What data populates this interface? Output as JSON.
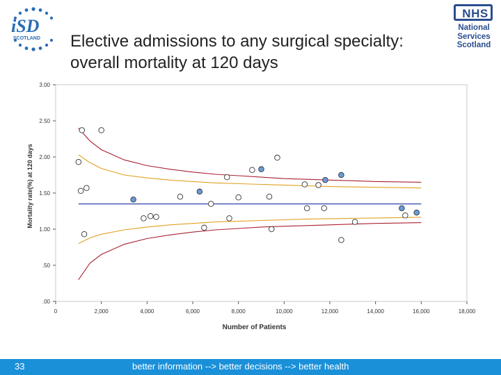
{
  "header": {
    "title": "Elective admissions to any surgical specialty: overall mortality at 120 days",
    "isd_logo_text": {
      "main": "iSD",
      "sub": "SCOTLAND"
    },
    "nhs_logo": {
      "word": "NHS",
      "lines": [
        "National",
        "Services",
        "Scotland"
      ]
    }
  },
  "chart_data": {
    "type": "scatter",
    "title": "",
    "xlabel": "Number of Patients",
    "ylabel": "Mortality rate(%) at 120 days",
    "xlim": [
      0,
      18000
    ],
    "ylim": [
      0,
      3.0
    ],
    "x_ticks": [
      0,
      2000,
      4000,
      6000,
      8000,
      10000,
      12000,
      14000,
      16000,
      18000
    ],
    "x_tick_labels": [
      "0",
      "2,000",
      "4,000",
      "6,000",
      "8,000",
      "10,000",
      "12,000",
      "14,000",
      "16,000",
      "18,000"
    ],
    "y_ticks": [
      0,
      0.5,
      1.0,
      1.5,
      2.0,
      2.5,
      3.0
    ],
    "y_tick_labels": [
      ".00",
      ".50",
      "1.00",
      "1.50",
      "2.00",
      "2.50",
      "3.00"
    ],
    "grid": false,
    "mean_line": 1.35,
    "colors": {
      "mean": "#3344aa",
      "inner_limit": "#e0a020",
      "outer_limit": "#aa2030",
      "point_filled": "#6b9bd8",
      "point_open": "#ffffff",
      "point_edge": "#333333"
    },
    "inner_limits": {
      "x": [
        1000,
        1500,
        2000,
        3000,
        4000,
        5000,
        6000,
        7000,
        8000,
        9000,
        10000,
        11000,
        12000,
        13000,
        14000,
        15000,
        16000
      ],
      "upper": [
        2.03,
        1.92,
        1.84,
        1.75,
        1.71,
        1.68,
        1.66,
        1.64,
        1.63,
        1.62,
        1.61,
        1.6,
        1.59,
        1.585,
        1.58,
        1.575,
        1.57
      ],
      "lower": [
        0.8,
        0.88,
        0.93,
        0.99,
        1.03,
        1.06,
        1.08,
        1.1,
        1.11,
        1.12,
        1.13,
        1.14,
        1.145,
        1.15,
        1.155,
        1.16,
        1.165
      ]
    },
    "outer_limits": {
      "x": [
        1000,
        1500,
        2000,
        3000,
        4000,
        5000,
        6000,
        7000,
        8000,
        9000,
        10000,
        11000,
        12000,
        13000,
        14000,
        15000,
        16000
      ],
      "upper": [
        2.4,
        2.22,
        2.1,
        1.96,
        1.88,
        1.83,
        1.79,
        1.76,
        1.74,
        1.72,
        1.7,
        1.69,
        1.68,
        1.67,
        1.66,
        1.655,
        1.65
      ],
      "lower": [
        0.3,
        0.53,
        0.65,
        0.79,
        0.87,
        0.92,
        0.96,
        0.99,
        1.01,
        1.03,
        1.04,
        1.05,
        1.06,
        1.07,
        1.08,
        1.085,
        1.09
      ]
    },
    "series": [
      {
        "filled": false,
        "points": [
          [
            1000,
            1.93
          ],
          [
            1150,
            2.37
          ],
          [
            1100,
            1.53
          ],
          [
            1350,
            1.57
          ],
          [
            1250,
            0.93
          ],
          [
            2000,
            2.37
          ],
          [
            3850,
            1.15
          ],
          [
            4150,
            1.18
          ],
          [
            4400,
            1.17
          ],
          [
            5450,
            1.45
          ],
          [
            6500,
            1.02
          ],
          [
            6800,
            1.35
          ],
          [
            7500,
            1.72
          ],
          [
            7600,
            1.15
          ],
          [
            8000,
            1.44
          ],
          [
            8600,
            1.82
          ],
          [
            9350,
            1.45
          ],
          [
            9450,
            1.0
          ],
          [
            9700,
            1.99
          ],
          [
            10900,
            1.62
          ],
          [
            11000,
            1.29
          ],
          [
            11500,
            1.61
          ],
          [
            11750,
            1.29
          ],
          [
            12500,
            0.85
          ],
          [
            13100,
            1.1
          ],
          [
            15300,
            1.19
          ]
        ]
      },
      {
        "filled": true,
        "points": [
          [
            3400,
            1.41
          ],
          [
            6300,
            1.52
          ],
          [
            9000,
            1.83
          ],
          [
            11800,
            1.68
          ],
          [
            12500,
            1.75
          ],
          [
            15150,
            1.29
          ],
          [
            15800,
            1.23
          ]
        ]
      }
    ]
  },
  "footer": {
    "page_number": "33",
    "tagline": "better information --> better decisions --> better health"
  }
}
